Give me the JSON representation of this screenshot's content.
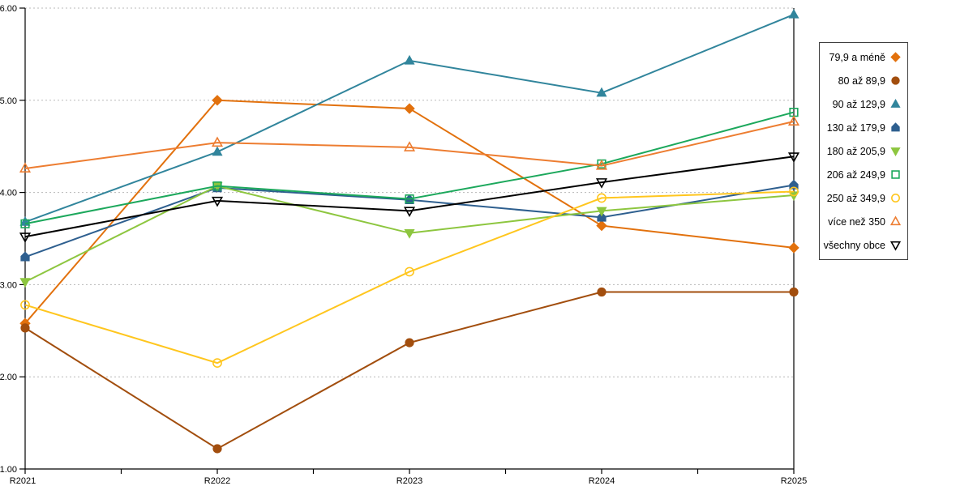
{
  "chart_data": {
    "type": "line",
    "title": "",
    "xlabel": "",
    "ylabel": "",
    "x_categories": [
      "R2021",
      "R2022",
      "R2023",
      "R2024",
      "R2025"
    ],
    "y_tick_labels": [
      "1.00",
      "2.00",
      "3.00",
      "4.00",
      "5.00",
      "6.00"
    ],
    "ylim": [
      1.0,
      6.0
    ],
    "grid": "horizontal-dashed",
    "legend_position": "right-outside",
    "axis_color": "#000000",
    "gridline_color": "#b8b8b8",
    "series": [
      {
        "name": "79,9 a méně",
        "color": "#E2710D",
        "marker": "diamond",
        "marker_fill": "filled",
        "values": [
          2.58,
          5.0,
          4.91,
          3.64,
          3.4
        ]
      },
      {
        "name": "80 až 89,9",
        "color": "#A24E0E",
        "marker": "circle",
        "marker_fill": "filled",
        "values": [
          2.53,
          1.22,
          2.37,
          2.92,
          2.92
        ]
      },
      {
        "name": "90 až 129,9",
        "color": "#31859C",
        "marker": "triangle-up",
        "marker_fill": "filled",
        "values": [
          3.68,
          4.44,
          5.43,
          5.08,
          5.93
        ]
      },
      {
        "name": "130 až 179,9",
        "color": "#2E5F8F",
        "marker": "pentagon",
        "marker_fill": "filled",
        "values": [
          3.3,
          4.05,
          3.92,
          3.73,
          4.08
        ]
      },
      {
        "name": "180 až 205,9",
        "color": "#8DC63F",
        "marker": "triangle-down",
        "marker_fill": "filled",
        "values": [
          3.03,
          4.07,
          3.56,
          3.8,
          3.97
        ]
      },
      {
        "name": "206 až 249,9",
        "color": "#1CA85C",
        "marker": "square",
        "marker_fill": "open",
        "values": [
          3.66,
          4.07,
          3.93,
          4.31,
          4.87
        ]
      },
      {
        "name": "250 až 349,9",
        "color": "#FFC61E",
        "marker": "circle",
        "marker_fill": "open",
        "values": [
          2.78,
          2.15,
          3.14,
          3.94,
          4.01
        ]
      },
      {
        "name": "více než 350",
        "color": "#ED7D31",
        "marker": "triangle-up",
        "marker_fill": "open",
        "values": [
          4.26,
          4.54,
          4.49,
          4.29,
          4.77
        ]
      },
      {
        "name": "všechny obce",
        "color": "#000000",
        "marker": "triangle-down",
        "marker_fill": "open",
        "values": [
          3.52,
          3.91,
          3.8,
          4.11,
          4.39
        ]
      }
    ]
  }
}
